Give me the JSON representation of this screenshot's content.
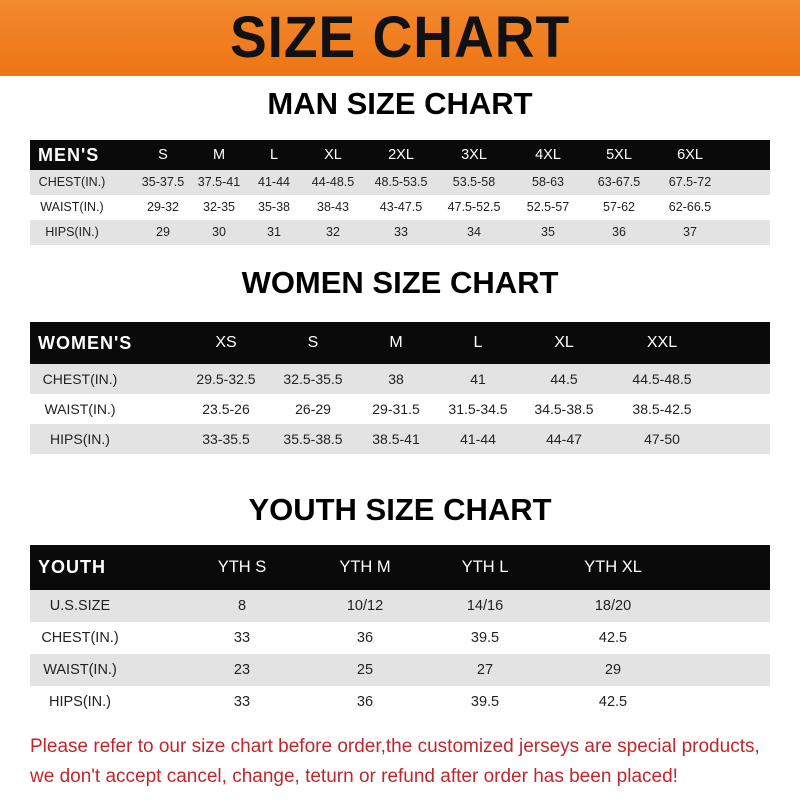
{
  "title": "SIZE CHART",
  "colors": {
    "banner": "#f07a1e",
    "header_row": "#0a0a0a",
    "stripe": "#e3e3e3",
    "note": "#c0272d"
  },
  "men": {
    "heading": "MAN SIZE CHART",
    "label": "MEN'S",
    "sizes": [
      "S",
      "M",
      "L",
      "XL",
      "2XL",
      "3XL",
      "4XL",
      "5XL",
      "6XL"
    ],
    "rows": [
      {
        "label": "CHEST(IN.)",
        "values": [
          "35-37.5",
          "37.5-41",
          "41-44",
          "44-48.5",
          "48.5-53.5",
          "53.5-58",
          "58-63",
          "63-67.5",
          "67.5-72"
        ]
      },
      {
        "label": "WAIST(IN.)",
        "values": [
          "29-32",
          "32-35",
          "35-38",
          "38-43",
          "43-47.5",
          "47.5-52.5",
          "52.5-57",
          "57-62",
          "62-66.5"
        ]
      },
      {
        "label": "HIPS(IN.)",
        "values": [
          "29",
          "30",
          "31",
          "32",
          "33",
          "34",
          "35",
          "36",
          "37"
        ]
      }
    ]
  },
  "women": {
    "heading": "WOMEN SIZE CHART",
    "label": "WOMEN'S",
    "sizes": [
      "XS",
      "S",
      "M",
      "L",
      "XL",
      "XXL"
    ],
    "rows": [
      {
        "label": "CHEST(IN.)",
        "values": [
          "29.5-32.5",
          "32.5-35.5",
          "38",
          "41",
          "44.5",
          "44.5-48.5"
        ]
      },
      {
        "label": "WAIST(IN.)",
        "values": [
          "23.5-26",
          "26-29",
          "29-31.5",
          "31.5-34.5",
          "34.5-38.5",
          "38.5-42.5"
        ]
      },
      {
        "label": "HIPS(IN.)",
        "values": [
          "33-35.5",
          "35.5-38.5",
          "38.5-41",
          "41-44",
          "44-47",
          "47-50"
        ]
      }
    ]
  },
  "youth": {
    "heading": "YOUTH SIZE CHART",
    "label": "YOUTH",
    "sizes": [
      "YTH S",
      "YTH M",
      "YTH L",
      "YTH XL"
    ],
    "rows": [
      {
        "label": "U.S.SIZE",
        "values": [
          "8",
          "10/12",
          "14/16",
          "18/20"
        ]
      },
      {
        "label": "CHEST(IN.)",
        "values": [
          "33",
          "36",
          "39.5",
          "42.5"
        ]
      },
      {
        "label": "WAIST(IN.)",
        "values": [
          "23",
          "25",
          "27",
          "29"
        ]
      },
      {
        "label": "HIPS(IN.)",
        "values": [
          "33",
          "36",
          "39.5",
          "42.5"
        ]
      }
    ]
  },
  "note": [
    "Please refer to our size chart before order,the customized jerseys are special products,",
    "we don't accept cancel, change, teturn or refund after order has been placed!"
  ]
}
